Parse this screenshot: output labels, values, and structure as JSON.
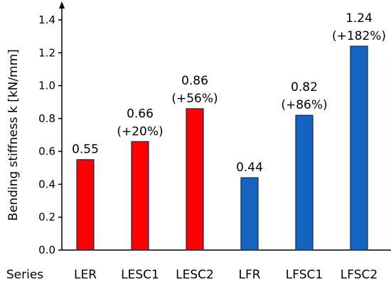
{
  "chart_data": {
    "type": "bar",
    "categories": [
      "LER",
      "LESC1",
      "LESC2",
      "LFR",
      "LFSC1",
      "LFSC2"
    ],
    "values": [
      0.55,
      0.66,
      0.86,
      0.44,
      0.82,
      1.24
    ],
    "value_labels": [
      "0.55",
      "0.66",
      "0.86",
      "0.44",
      "0.82",
      "1.24"
    ],
    "change_labels": [
      "",
      "(+20%)",
      "(+56%)",
      "",
      "(+86%)",
      "(+182%)"
    ],
    "bar_colors": [
      "#ff0000",
      "#ff0000",
      "#ff0000",
      "#1565c0",
      "#1565c0",
      "#1565c0"
    ],
    "bar_stroke": "#0b2a55",
    "ylabel": "Bending stiffness k [kN/mm]",
    "xlabel": "Series",
    "ylim": [
      0,
      1.4
    ],
    "yticks": [
      "0.0",
      "0.2",
      "0.4",
      "0.6",
      "0.8",
      "1.0",
      "1.2",
      "1.4"
    ],
    "grid": false
  }
}
